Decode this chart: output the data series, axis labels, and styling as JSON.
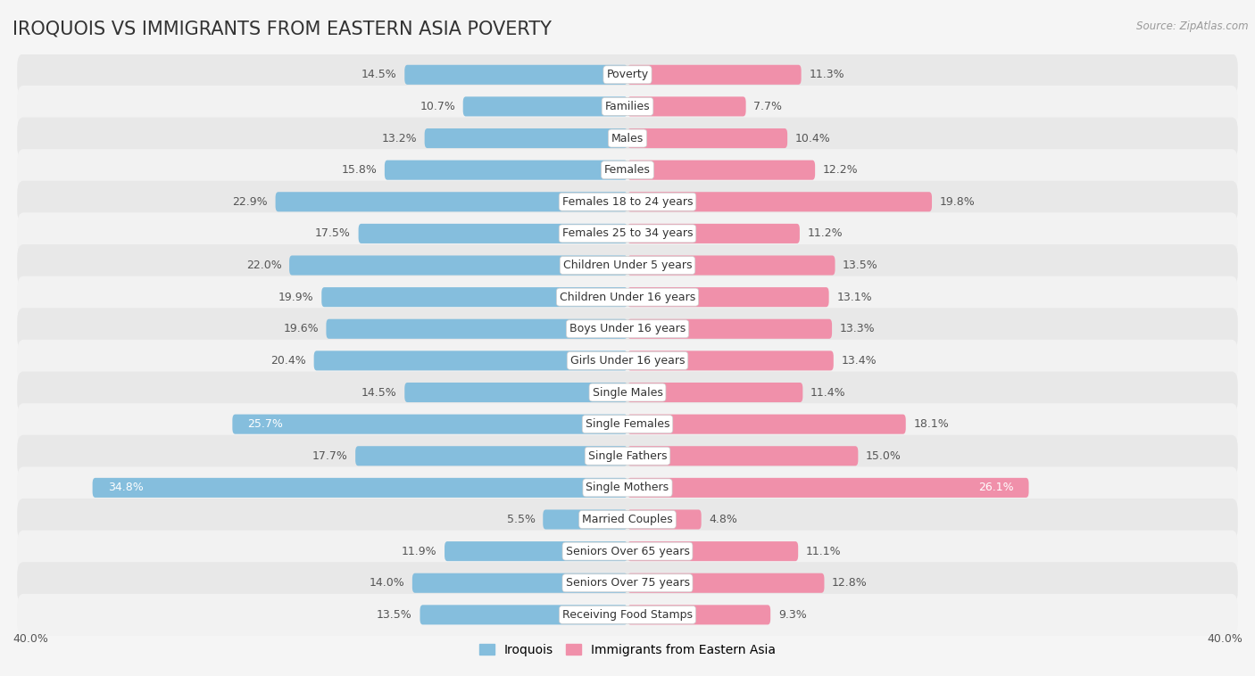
{
  "title": "IROQUOIS VS IMMIGRANTS FROM EASTERN ASIA POVERTY",
  "source": "Source: ZipAtlas.com",
  "categories": [
    "Poverty",
    "Families",
    "Males",
    "Females",
    "Females 18 to 24 years",
    "Females 25 to 34 years",
    "Children Under 5 years",
    "Children Under 16 years",
    "Boys Under 16 years",
    "Girls Under 16 years",
    "Single Males",
    "Single Females",
    "Single Fathers",
    "Single Mothers",
    "Married Couples",
    "Seniors Over 65 years",
    "Seniors Over 75 years",
    "Receiving Food Stamps"
  ],
  "iroquois": [
    14.5,
    10.7,
    13.2,
    15.8,
    22.9,
    17.5,
    22.0,
    19.9,
    19.6,
    20.4,
    14.5,
    25.7,
    17.7,
    34.8,
    5.5,
    11.9,
    14.0,
    13.5
  ],
  "eastern_asia": [
    11.3,
    7.7,
    10.4,
    12.2,
    19.8,
    11.2,
    13.5,
    13.1,
    13.3,
    13.4,
    11.4,
    18.1,
    15.0,
    26.1,
    4.8,
    11.1,
    12.8,
    9.3
  ],
  "iroquois_color": "#85bedd",
  "eastern_asia_color": "#f090aa",
  "row_color_even": "#e8e8e8",
  "row_color_odd": "#f2f2f2",
  "background_color": "#f5f5f5",
  "xlim": 40.0,
  "legend_label_iroquois": "Iroquois",
  "legend_label_eastern_asia": "Immigrants from Eastern Asia",
  "title_fontsize": 15,
  "label_fontsize": 9,
  "value_fontsize": 9
}
